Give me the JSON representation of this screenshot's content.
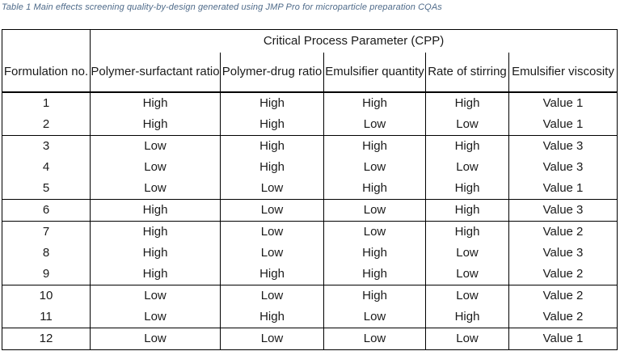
{
  "caption": "Table 1 Main effects screening quality-by-design generated using JMP Pro for microparticle preparation CQAs",
  "group_header": "Critical Process Parameter (CPP)",
  "columns": {
    "formulation": "Formulation no.",
    "ps_ratio": "Polymer-surfactant ratio",
    "pd_ratio": "Polymer-drug ratio",
    "emulsifier_qty": "Emulsifier quantity",
    "stirring": "Rate of stirring",
    "viscosity": "Emulsifier viscosity"
  },
  "rows": [
    [
      "1",
      "High",
      "High",
      "High",
      "High",
      "Value 1"
    ],
    [
      "2",
      "High",
      "High",
      "Low",
      "Low",
      "Value 1"
    ],
    [
      "3",
      "Low",
      "High",
      "High",
      "High",
      "Value 3"
    ],
    [
      "4",
      "Low",
      "High",
      "Low",
      "Low",
      "Value 3"
    ],
    [
      "5",
      "Low",
      "Low",
      "High",
      "High",
      "Value 1"
    ],
    [
      "6",
      "High",
      "Low",
      "Low",
      "High",
      "Value 3"
    ],
    [
      "7",
      "High",
      "Low",
      "Low",
      "High",
      "Value 2"
    ],
    [
      "8",
      "High",
      "Low",
      "High",
      "Low",
      "Value 3"
    ],
    [
      "9",
      "High",
      "High",
      "High",
      "Low",
      "Value 2"
    ],
    [
      "10",
      "Low",
      "Low",
      "High",
      "Low",
      "Value 2"
    ],
    [
      "11",
      "Low",
      "High",
      "Low",
      "High",
      "Value 2"
    ],
    [
      "12",
      "Low",
      "Low",
      "Low",
      "Low",
      "Value 1"
    ]
  ]
}
